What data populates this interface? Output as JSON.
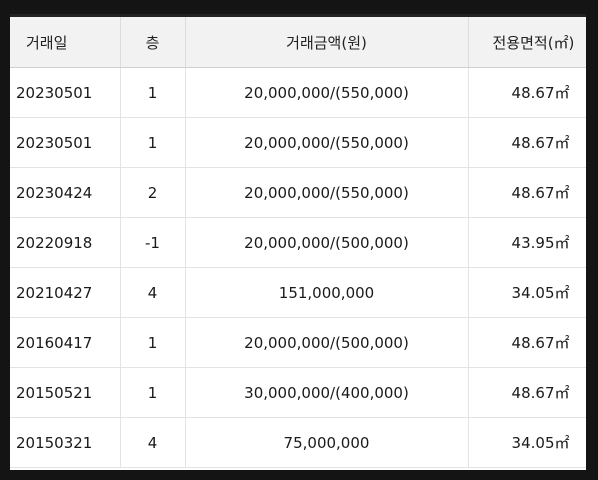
{
  "table": {
    "headers": {
      "date": "거래일",
      "floor": "층",
      "price": "거래금액(원)",
      "area": "전용면적(㎡)"
    },
    "rows": [
      {
        "date": "20230501",
        "floor": "1",
        "price": "20,000,000/(550,000)",
        "area": "48.67㎡"
      },
      {
        "date": "20230501",
        "floor": "1",
        "price": "20,000,000/(550,000)",
        "area": "48.67㎡"
      },
      {
        "date": "20230424",
        "floor": "2",
        "price": "20,000,000/(550,000)",
        "area": "48.67㎡"
      },
      {
        "date": "20220918",
        "floor": "-1",
        "price": "20,000,000/(500,000)",
        "area": "43.95㎡"
      },
      {
        "date": "20210427",
        "floor": "4",
        "price": "151,000,000",
        "area": "34.05㎡"
      },
      {
        "date": "20160417",
        "floor": "1",
        "price": "20,000,000/(500,000)",
        "area": "48.67㎡"
      },
      {
        "date": "20150521",
        "floor": "1",
        "price": "30,000,000/(400,000)",
        "area": "48.67㎡"
      },
      {
        "date": "20150321",
        "floor": "4",
        "price": "75,000,000",
        "area": "34.05㎡"
      }
    ]
  }
}
